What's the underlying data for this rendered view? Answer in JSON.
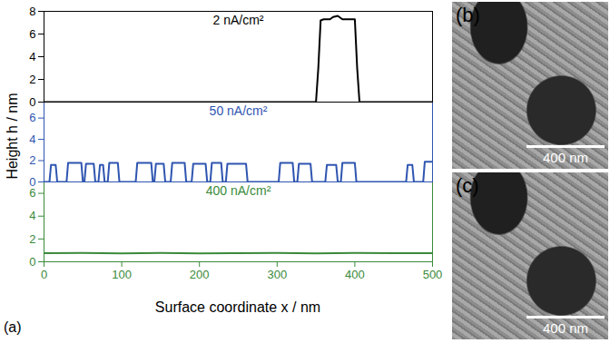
{
  "panel_label": "(a)",
  "chart_data": [
    {
      "type": "line",
      "title": "2 nA/cm²",
      "color": "#000000",
      "x": [
        0,
        350,
        353,
        356,
        360,
        368,
        372,
        378,
        384,
        390,
        400,
        403,
        406,
        500
      ],
      "values": [
        0,
        0,
        3,
        7.2,
        7.3,
        7.3,
        7.5,
        7.6,
        7.3,
        7.3,
        7.3,
        3,
        0,
        0
      ],
      "xlim": [
        0,
        500
      ],
      "ylim": [
        0,
        8
      ],
      "yticks": [
        0,
        2,
        4,
        6,
        8
      ],
      "tick_labels": "y"
    },
    {
      "type": "line",
      "title": "50 nA/cm²",
      "color": "#2f55b0",
      "ylabel": "Height h / nm",
      "x": [
        0,
        7,
        9,
        15,
        17,
        29,
        31,
        48,
        50,
        52,
        54,
        64,
        66,
        70,
        72,
        76,
        78,
        82,
        84,
        95,
        97,
        118,
        120,
        138,
        140,
        142,
        144,
        154,
        156,
        163,
        165,
        181,
        183,
        190,
        192,
        208,
        210,
        214,
        216,
        228,
        230,
        234,
        236,
        260,
        262,
        302,
        304,
        320,
        322,
        326,
        328,
        343,
        345,
        362,
        364,
        376,
        378,
        382,
        384,
        400,
        402,
        466,
        468,
        474,
        476,
        488,
        490,
        500
      ],
      "values": [
        0,
        0,
        1.6,
        1.6,
        0,
        0,
        1.8,
        1.8,
        0,
        0,
        1.7,
        1.7,
        0,
        0,
        1.6,
        1.6,
        0,
        0,
        1.8,
        1.8,
        0,
        0,
        1.8,
        1.8,
        0,
        0,
        1.7,
        1.7,
        0,
        0,
        1.8,
        1.8,
        0,
        0,
        1.7,
        1.7,
        0,
        0,
        1.8,
        1.8,
        0,
        0,
        1.7,
        1.7,
        0,
        0,
        1.8,
        1.8,
        0,
        0,
        1.7,
        1.7,
        0,
        0,
        1.6,
        1.6,
        0,
        0,
        1.8,
        1.8,
        0,
        0,
        1.6,
        1.6,
        0,
        0,
        1.9,
        1.9
      ],
      "xlim": [
        0,
        500
      ],
      "ylim": [
        0,
        7.5
      ],
      "yticks": [
        0,
        2,
        4,
        6
      ],
      "tick_labels": "y"
    },
    {
      "type": "line",
      "title": "400 nA/cm²",
      "color": "#3a8a3a",
      "xlabel": "Surface coordinate x / nm",
      "x": [
        0,
        50,
        100,
        150,
        200,
        250,
        300,
        350,
        400,
        450,
        500
      ],
      "values": [
        0.75,
        0.78,
        0.74,
        0.77,
        0.73,
        0.76,
        0.78,
        0.74,
        0.77,
        0.75,
        0.76
      ],
      "xlim": [
        0,
        500
      ],
      "ylim": [
        0,
        7
      ],
      "xticks": [
        0,
        100,
        200,
        300,
        400,
        500
      ],
      "yticks": [
        0,
        2,
        4,
        6
      ]
    }
  ],
  "images": [
    {
      "label": "(b)",
      "scale_bar": "400 nm"
    },
    {
      "label": "(c)",
      "scale_bar": "400 nm"
    }
  ]
}
